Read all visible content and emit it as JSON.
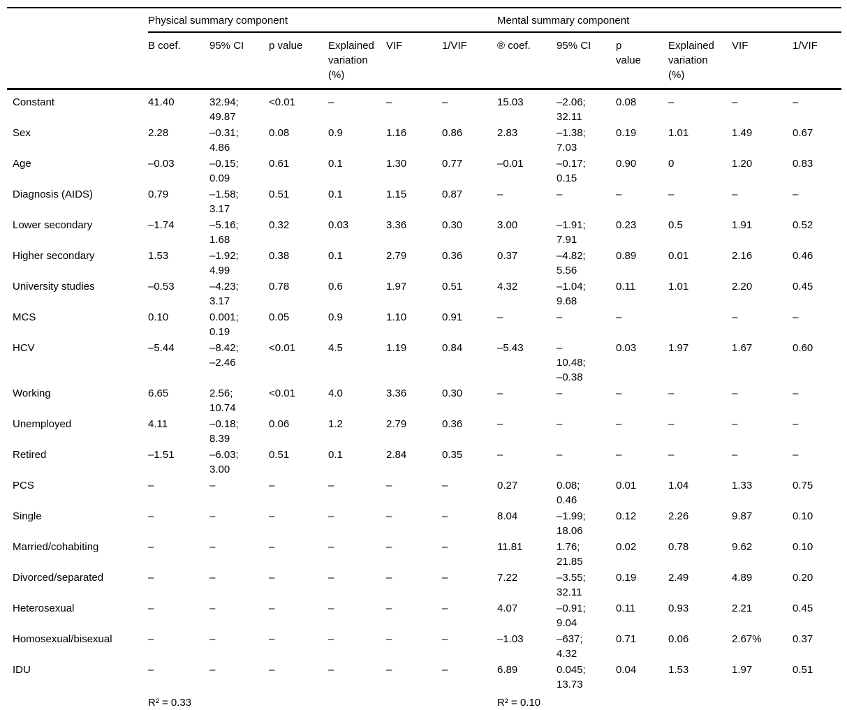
{
  "table": {
    "group_headers": [
      {
        "label": "Physical summary component"
      },
      {
        "label": "Mental summary component"
      }
    ],
    "column_headers": [
      "B coef.",
      "95% CI",
      "p value",
      "Explained\nvariation\n(%)",
      "VIF",
      "1/VIF",
      "® coef.",
      "95% CI",
      "p\nvalue",
      "Explained\nvariation\n(%)",
      "VIF",
      "1/VIF"
    ],
    "rows": [
      {
        "label": "Constant",
        "cells": [
          "41.40",
          "32.94;\n49.87",
          "<0.01",
          "–",
          "–",
          "–",
          "15.03",
          "–2.06;\n32.11",
          "0.08",
          "–",
          "–",
          "–"
        ]
      },
      {
        "label": "Sex",
        "cells": [
          "2.28",
          "–0.31;\n4.86",
          "0.08",
          "0.9",
          "1.16",
          "0.86",
          "2.83",
          "–1.38;\n7.03",
          "0.19",
          "1.01",
          "1.49",
          "0.67"
        ]
      },
      {
        "label": "Age",
        "cells": [
          "–0.03",
          "–0.15;\n0.09",
          "0.61",
          "0.1",
          "1.30",
          "0.77",
          "–0.01",
          "–0.17;\n0.15",
          "0.90",
          "0",
          "1.20",
          "0.83"
        ]
      },
      {
        "label": "Diagnosis (AIDS)",
        "cells": [
          "0.79",
          "–1.58;\n3.17",
          "0.51",
          "0.1",
          "1.15",
          "0.87",
          "–",
          "–",
          "–",
          "–",
          "–",
          "–"
        ]
      },
      {
        "label": "Lower secondary",
        "cells": [
          "–1.74",
          "–5.16;\n1.68",
          "0.32",
          "0.03",
          "3.36",
          "0.30",
          "3.00",
          "–1.91;\n7.91",
          "0.23",
          "0.5",
          "1.91",
          "0.52"
        ]
      },
      {
        "label": "Higher secondary",
        "cells": [
          "1.53",
          "–1.92;\n4.99",
          "0.38",
          "0.1",
          "2.79",
          "0.36",
          "0.37",
          "–4.82;\n5.56",
          "0.89",
          "0.01",
          "2.16",
          "0.46"
        ]
      },
      {
        "label": "University studies",
        "cells": [
          "–0.53",
          "–4.23;\n3.17",
          "0.78",
          "0.6",
          "1.97",
          "0.51",
          "4.32",
          "–1.04;\n9.68",
          "0.11",
          "1.01",
          "2.20",
          "0.45"
        ]
      },
      {
        "label": "MCS",
        "cells": [
          "0.10",
          "0.001;\n0.19",
          "0.05",
          "0.9",
          "1.10",
          "0.91",
          "–",
          "–",
          "–",
          "",
          "–",
          "–"
        ]
      },
      {
        "label": "HCV",
        "cells": [
          "–5.44",
          "–8.42;\n–2.46",
          "<0.01",
          "4.5",
          "1.19",
          "0.84",
          "–5.43",
          "–\n10.48;\n–0.38",
          "0.03",
          "1.97",
          "1.67",
          "0.60"
        ]
      },
      {
        "label": "Working",
        "cells": [
          "6.65",
          "2.56;\n10.74",
          "<0.01",
          "4.0",
          "3.36",
          "0.30",
          "–",
          "–",
          "–",
          "–",
          "–",
          "–"
        ]
      },
      {
        "label": "Unemployed",
        "cells": [
          "4.11",
          "–0.18;\n8.39",
          "0.06",
          "1.2",
          "2.79",
          "0.36",
          "–",
          "–",
          "–",
          "–",
          "–",
          "–"
        ]
      },
      {
        "label": "Retired",
        "cells": [
          "–1.51",
          "–6.03;\n3.00",
          "0.51",
          "0.1",
          "2.84",
          "0.35",
          "–",
          "–",
          "–",
          "–",
          "–",
          "–"
        ]
      },
      {
        "label": "PCS",
        "cells": [
          "–",
          "–",
          "–",
          "–",
          "–",
          "–",
          "0.27",
          "0.08;\n0.46",
          "0.01",
          "1.04",
          "1.33",
          "0.75"
        ]
      },
      {
        "label": "Single",
        "cells": [
          "–",
          "–",
          "–",
          "–",
          "–",
          "–",
          "8.04",
          "–1.99;\n18.06",
          "0.12",
          "2.26",
          "9.87",
          "0.10"
        ]
      },
      {
        "label": "Married/cohabiting",
        "cells": [
          "–",
          "–",
          "–",
          "–",
          "–",
          "–",
          "11.81",
          "1.76;\n21.85",
          "0.02",
          "0.78",
          "9.62",
          "0.10"
        ]
      },
      {
        "label": "Divorced/separated",
        "cells": [
          "–",
          "–",
          "–",
          "–",
          "–",
          "–",
          "7.22",
          "–3.55;\n32.11",
          "0.19",
          "2.49",
          "4.89",
          "0.20"
        ]
      },
      {
        "label": "Heterosexual",
        "cells": [
          "–",
          "–",
          "–",
          "–",
          "–",
          "–",
          "4.07",
          "–0.91;\n9.04",
          "0.11",
          "0.93",
          "2.21",
          "0.45"
        ]
      },
      {
        "label": "Homosexual/bisexual",
        "cells": [
          "–",
          "–",
          "–",
          "–",
          "–",
          "–",
          "–1.03",
          "–637;\n4.32",
          "0.71",
          "0.06",
          "2.67%",
          "0.37"
        ]
      },
      {
        "label": "IDU",
        "cells": [
          "–",
          "–",
          "–",
          "–",
          "–",
          "–",
          "6.89",
          "0.045;\n13.73",
          "0.04",
          "1.53",
          "1.97",
          "0.51"
        ]
      }
    ],
    "footer": {
      "physical_r2": "R² = 0.33",
      "mental_r2": "R² = 0.10"
    }
  },
  "colors": {
    "background": "#ffffff",
    "text": "#000000",
    "rule": "#000000"
  }
}
